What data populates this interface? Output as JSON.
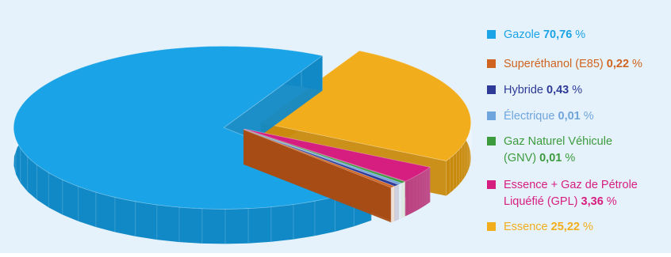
{
  "chart_data": {
    "type": "pie",
    "title": "",
    "unit": "%",
    "series": [
      {
        "name": "Gazole",
        "value": 70.76,
        "value_label": "70,76",
        "color": "#1aa3e6",
        "side": "#1189c6"
      },
      {
        "name": "Superéthanol (E85)",
        "value": 0.22,
        "value_label": "0,22",
        "color": "#d0631f",
        "side": "#a84c14"
      },
      {
        "name": "Hybride",
        "value": 0.43,
        "value_label": "0,43",
        "color": "#2d3a97",
        "side": "#1f2a74"
      },
      {
        "name": "Électrique",
        "value": 0.01,
        "value_label": "0,01",
        "color": "#6fa5dd",
        "side": "#5588c0"
      },
      {
        "name": "Gaz Naturel Véhicule (GNV)",
        "value": 0.01,
        "value_label": "0,01",
        "color": "#3b9b3d",
        "side": "#2a7a2c"
      },
      {
        "name": "Essence + Gaz de Pétrole Liquéfié (GPL)",
        "value": 3.36,
        "value_label": "3,36",
        "color": "#d61d80",
        "side": "#ab1564"
      },
      {
        "name": "Essence",
        "value": 25.22,
        "value_label": "25,22",
        "color": "#f2ad1d",
        "side": "#c88a0d"
      }
    ],
    "legend_position": "right"
  },
  "legend": {
    "items": [
      {
        "name": "Gazole",
        "lines": [
          "Gazole "
        ],
        "value_label": "70,76",
        "suffix": " %",
        "color": "#1aa3e6"
      },
      {
        "name": "Superéthanol (E85)",
        "lines": [
          "Superéthanol (E85) "
        ],
        "value_label": "0,22",
        "suffix": " %",
        "color": "#d0631f"
      },
      {
        "name": "Hybride",
        "lines": [
          "Hybride "
        ],
        "value_label": "0,43",
        "suffix": " %",
        "color": "#2d3a97"
      },
      {
        "name": "Électrique",
        "lines": [
          "Électrique "
        ],
        "value_label": "0,01",
        "suffix": " %",
        "color": "#6fa5dd"
      },
      {
        "name": "Gaz Naturel Véhicule (GNV)",
        "lines": [
          "Gaz Naturel Véhicule",
          "(GNV) "
        ],
        "value_label": "0,01",
        "suffix": " %",
        "color": "#3b9b3d"
      },
      {
        "name": "Essence + Gaz de Pétrole Liquéfié (GPL)",
        "lines": [
          "Essence + Gaz de Pétrole",
          "Liquéfié (GPL) "
        ],
        "value_label": "3,36",
        "suffix": " %",
        "color": "#d61d80"
      },
      {
        "name": "Essence",
        "lines": [
          "Essence "
        ],
        "value_label": "25,22",
        "suffix": " %",
        "color": "#f2ad1d"
      }
    ]
  }
}
